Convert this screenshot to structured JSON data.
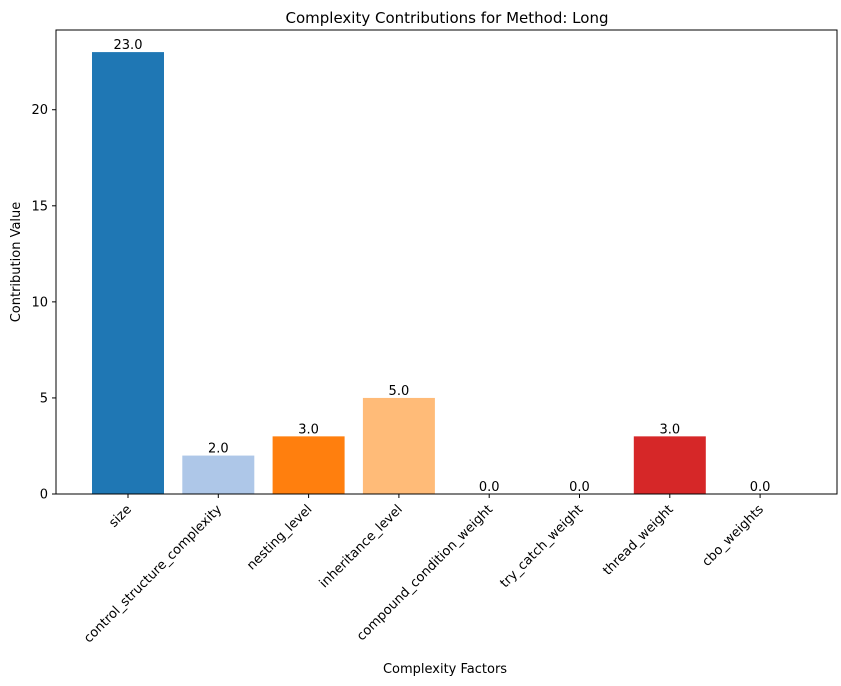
{
  "chart_data": {
    "type": "bar",
    "title": "Complexity Contributions for Method: Long",
    "xlabel": "Complexity Factors",
    "ylabel": "Contribution Value",
    "categories": [
      "size",
      "control_structure_complexity",
      "nesting_level",
      "inheritance_level",
      "compound_condition_weight",
      "try_catch_weight",
      "thread_weight",
      "cbo_weights"
    ],
    "values": [
      23.0,
      2.0,
      3.0,
      5.0,
      0.0,
      0.0,
      3.0,
      0.0
    ],
    "data_labels": [
      "23.0",
      "2.0",
      "3.0",
      "5.0",
      "0.0",
      "0.0",
      "3.0",
      "0.0"
    ],
    "colors": [
      "#1f77b4",
      "#aec7e8",
      "#ff7f0e",
      "#ffbb78",
      "#2ca02c",
      "#98df8a",
      "#d62728",
      "#ff9896"
    ],
    "ylim": [
      0,
      24.15
    ],
    "yticks": [
      0,
      5,
      10,
      15,
      20
    ],
    "grid": false,
    "legend": "none"
  }
}
